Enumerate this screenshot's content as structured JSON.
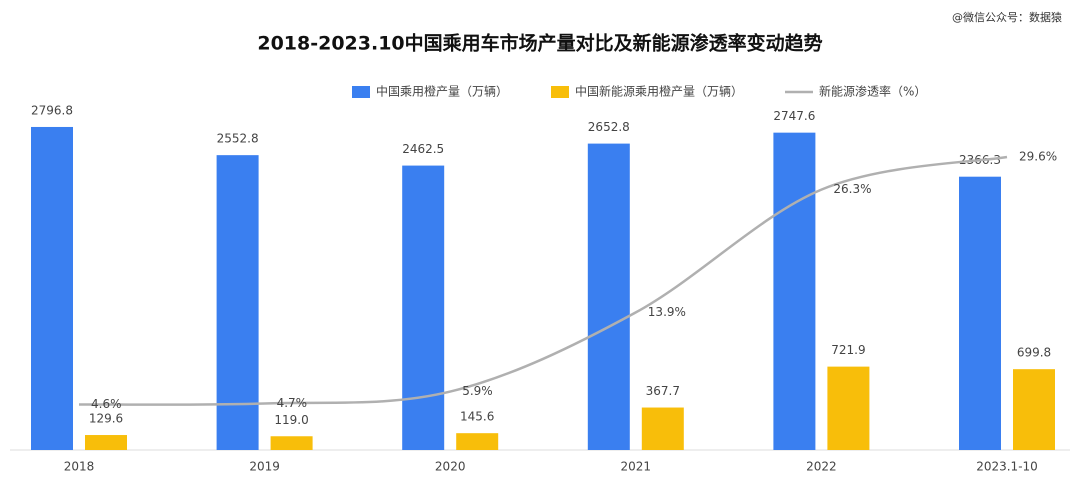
{
  "chart_data": {
    "type": "bar-line",
    "title": "2018-2023.10中国乘用车市场产量对比及新能源渗透率变动趋势",
    "watermark": "@微信公众号：数据猿",
    "categories": [
      "2018",
      "2019",
      "2020",
      "2021",
      "2022",
      "2023.1-10"
    ],
    "series": [
      {
        "name": "中国乘用橙产量（万辆）",
        "type": "bar",
        "color": "#3a7ff0",
        "values": [
          2796.8,
          2552.8,
          2462.5,
          2652.8,
          2747.6,
          2366.3
        ],
        "value_labels": [
          "2796.8",
          "2552.8",
          "2462.5",
          "2652.8",
          "2747.6",
          "2366.3"
        ]
      },
      {
        "name": "中国新能源乘用橙产量（万辆）",
        "type": "bar",
        "color": "#f8be0a",
        "values": [
          129.6,
          119.0,
          145.6,
          367.7,
          721.9,
          699.8
        ],
        "value_labels": [
          "129.6",
          "119.0",
          "145.6",
          "367.7",
          "721.9",
          "699.8"
        ]
      },
      {
        "name": "新能源渗透率（%）",
        "type": "line",
        "axis": "y2",
        "color": "#b0b0b0",
        "values": [
          4.6,
          4.7,
          5.9,
          13.9,
          26.3,
          29.6
        ],
        "value_labels": [
          "4.6%",
          "4.7%",
          "5.9%",
          "13.9%",
          "26.3%",
          "29.6%"
        ]
      }
    ],
    "ylim": [
      0,
      3000
    ],
    "y2lim": [
      0,
      35
    ],
    "legend": "top"
  }
}
